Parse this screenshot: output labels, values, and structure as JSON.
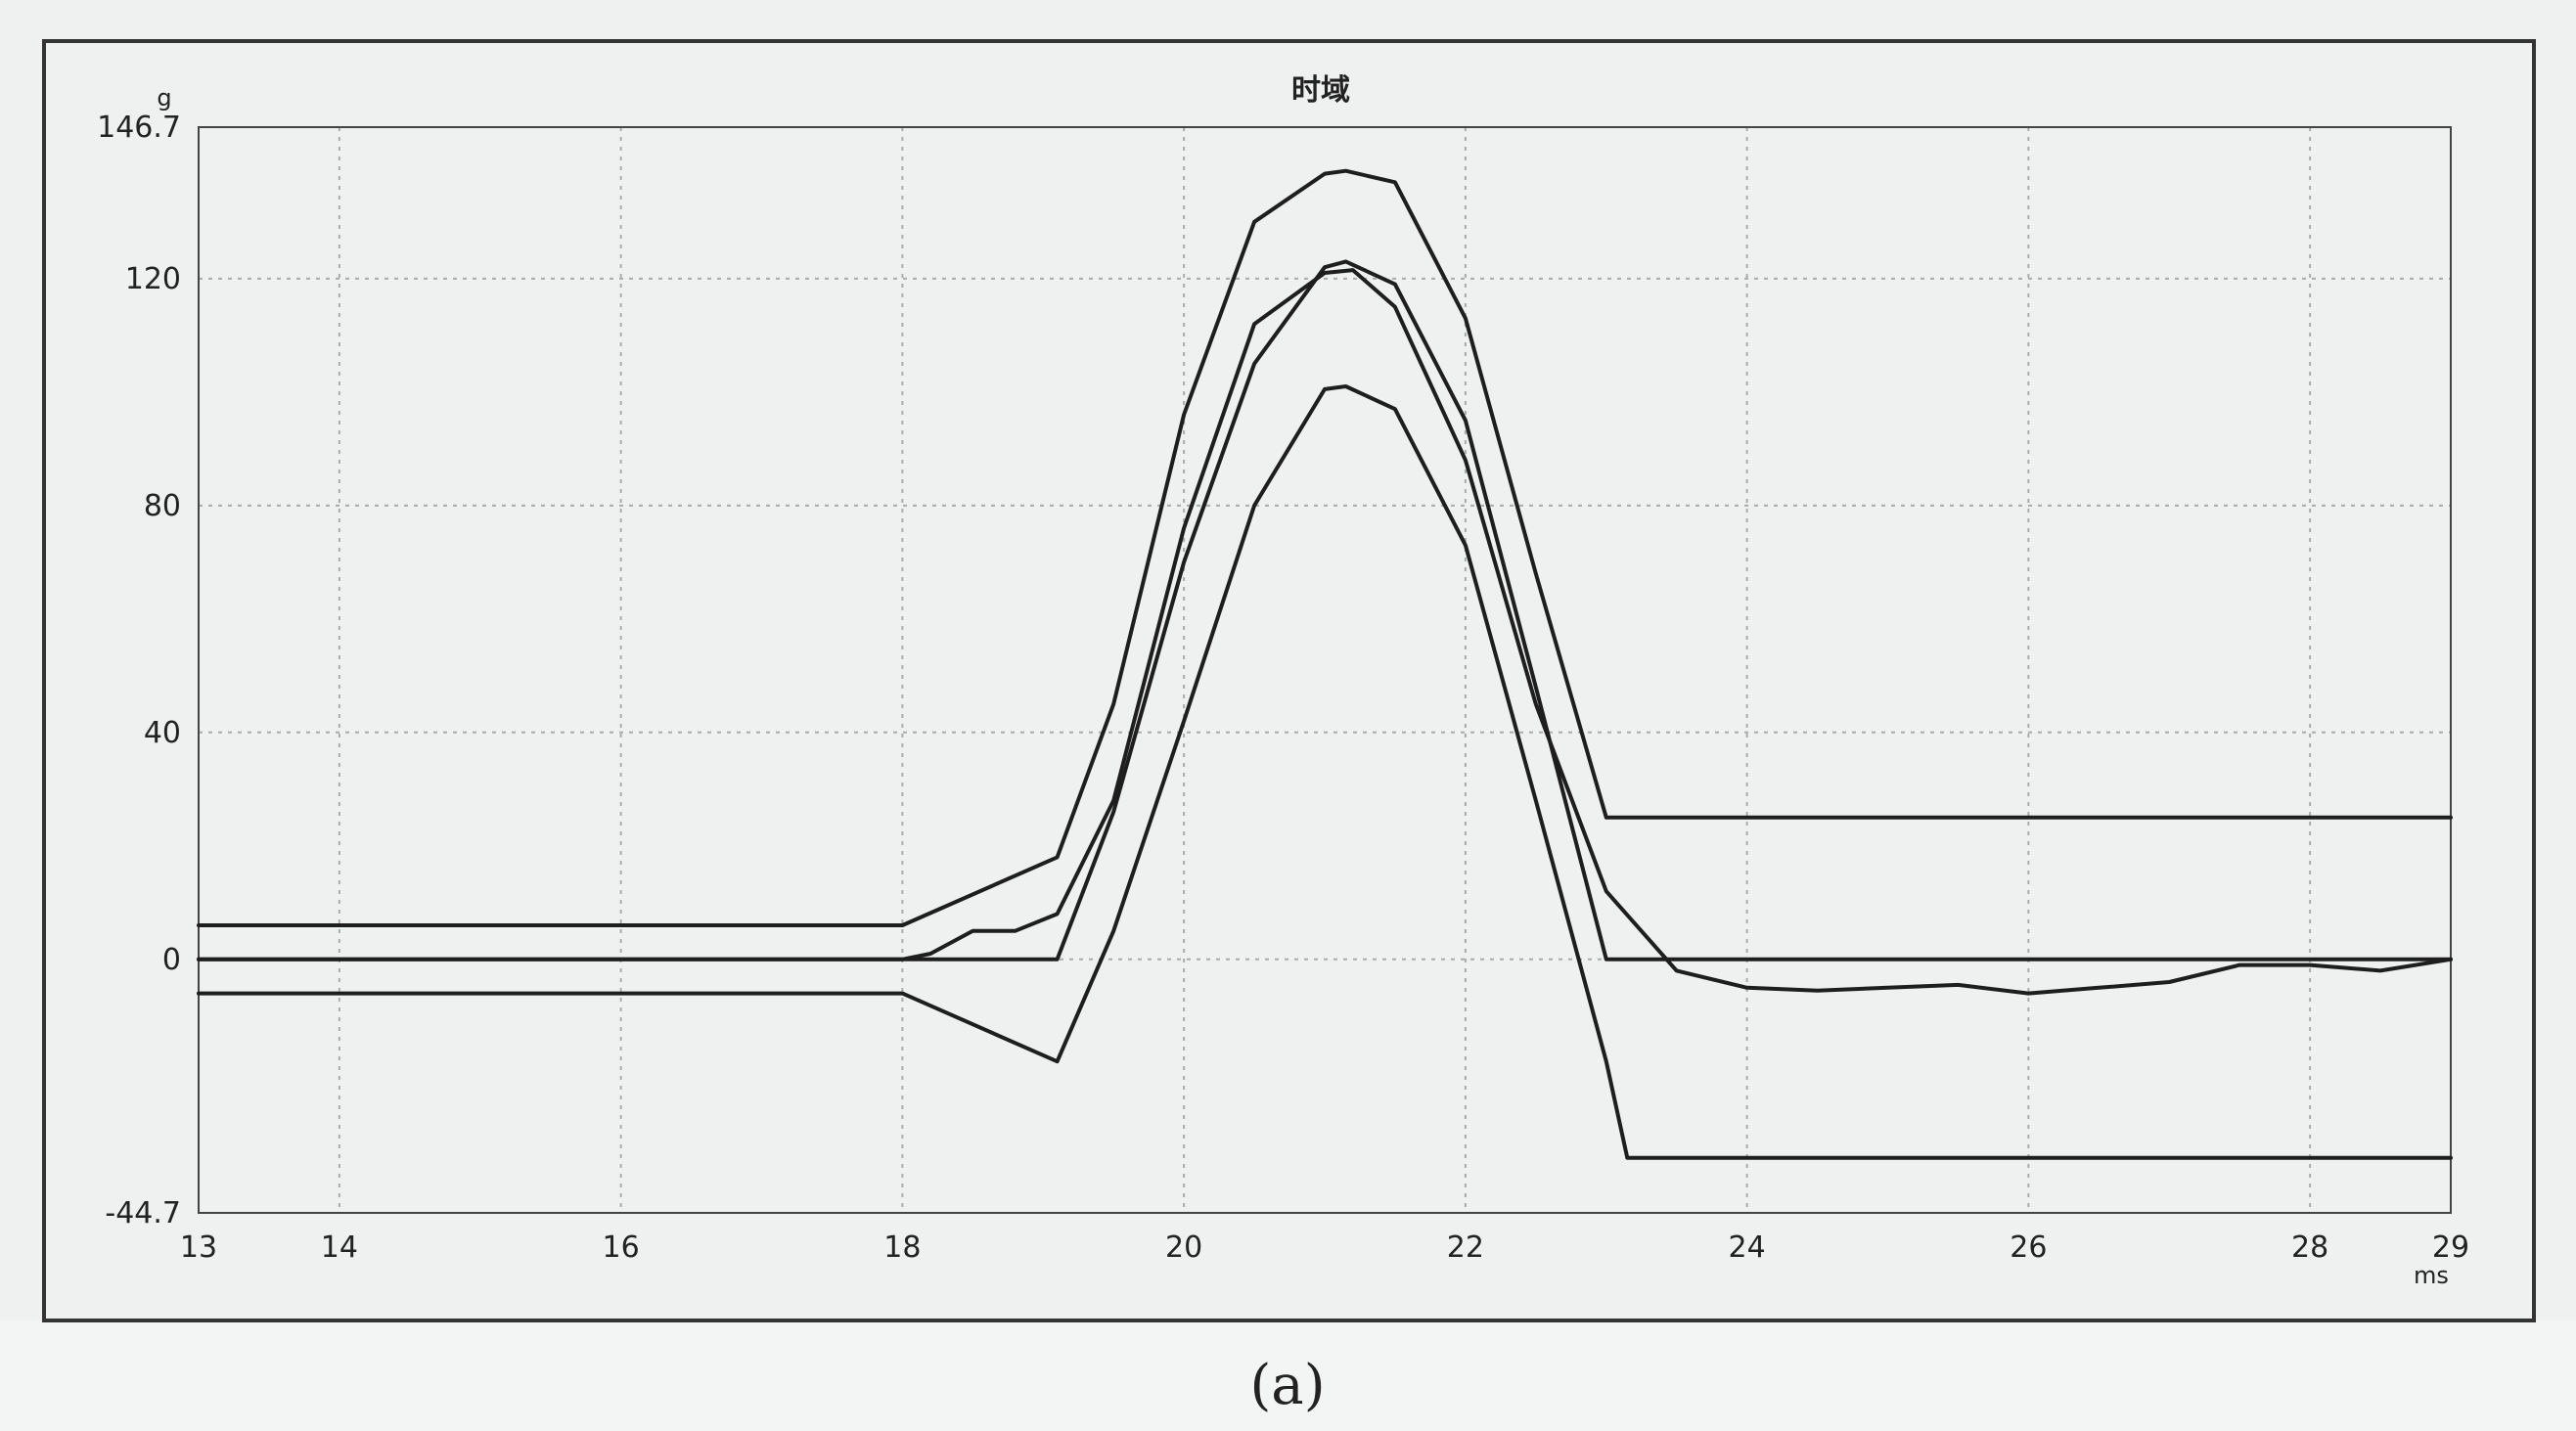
{
  "figure": {
    "caption": "(a)"
  },
  "colors": {
    "panel_bg": "#f3f5f4",
    "frame": "#333333",
    "grid": "#a8acaa",
    "trace": "#1e1e1e"
  },
  "chart_data": {
    "type": "line",
    "title": "时域",
    "xlabel": "ms",
    "ylabel": "g",
    "xlim": [
      13,
      29
    ],
    "ylim": [
      -44.7,
      146.7
    ],
    "xticks": [
      "13",
      "14",
      "16",
      "18",
      "20",
      "22",
      "24",
      "26",
      "28",
      "29"
    ],
    "xtick_values": [
      13,
      14,
      16,
      18,
      20,
      22,
      24,
      26,
      28,
      29
    ],
    "yticks": [
      "146.7",
      "120",
      "80",
      "40",
      "0",
      "-44.7"
    ],
    "ytick_values": [
      146.7,
      120,
      80,
      40,
      0,
      -44.7
    ],
    "grid": true,
    "legend": "none",
    "series": [
      {
        "x": [
          13,
          18,
          19.1,
          19.5,
          20,
          20.5,
          21,
          21.15,
          21.5,
          22,
          22.5,
          23.0,
          29
        ],
        "y": [
          6,
          6,
          18,
          45,
          96,
          130,
          138.5,
          139,
          137,
          113,
          68,
          25,
          25
        ]
      },
      {
        "x": [
          13,
          18,
          19.1,
          19.5,
          20,
          20.5,
          21,
          21.15,
          21.5,
          22,
          22.5,
          23.0,
          23.15,
          29
        ],
        "y": [
          -6,
          -6,
          -18,
          5,
          42,
          80,
          100.5,
          101,
          97,
          73,
          28,
          -18,
          -35,
          -35
        ]
      },
      {
        "x": [
          13,
          19.1,
          19.5,
          20,
          20.5,
          21,
          21.15,
          21.5,
          22,
          22.5,
          23.0,
          29
        ],
        "y": [
          0,
          0,
          26,
          70,
          105,
          122,
          123,
          119,
          95,
          48,
          0,
          0
        ]
      },
      {
        "x": [
          13,
          14,
          15,
          16,
          17,
          18,
          18.2,
          18.5,
          18.8,
          19.1,
          19.5,
          20,
          20.5,
          21,
          21.2,
          21.5,
          22,
          22.5,
          23,
          23.5,
          24,
          24.5,
          25,
          25.5,
          26,
          26.5,
          27,
          27.5,
          28,
          28.5,
          29
        ],
        "y": [
          0,
          0,
          0,
          0,
          0,
          0,
          1,
          5,
          5,
          8,
          28,
          76,
          112,
          121,
          121.5,
          115,
          88,
          45,
          12,
          -2,
          -5,
          -5.5,
          -5,
          -4.5,
          -6,
          -5,
          -4,
          -1,
          -1,
          -2,
          0
        ]
      }
    ]
  }
}
